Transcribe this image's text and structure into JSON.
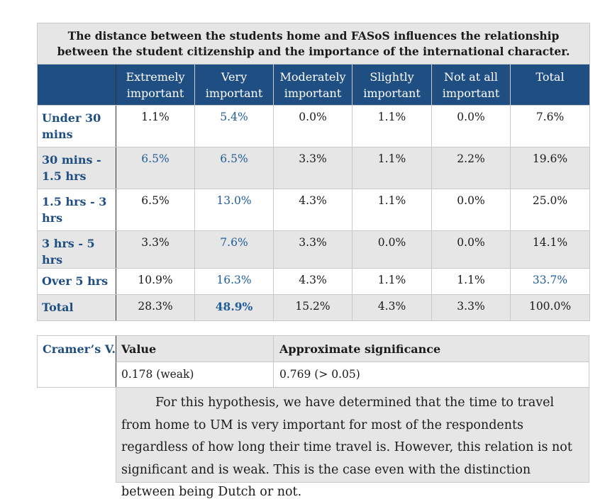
{
  "table": {
    "title": "The distance between the students home and FASoS influences the relationship between the student citizenship and the importance of the international character.",
    "headers": [
      "",
      "Extremely important",
      "Very important",
      "Moderately important",
      "Slightly important",
      "Not at all important",
      "Total"
    ],
    "rows": [
      {
        "label": "Under 30 mins",
        "values": [
          "1.1%",
          "5.4%",
          "0.0%",
          "1.1%",
          "0.0%",
          "7.6%"
        ]
      },
      {
        "label": "30 mins - 1.5 hrs",
        "values": [
          "6.5%",
          "6.5%",
          "3.3%",
          "1.1%",
          "2.2%",
          "19.6%"
        ]
      },
      {
        "label": "1.5 hrs - 3 hrs",
        "values": [
          "6.5%",
          "13.0%",
          "4.3%",
          "1.1%",
          "0.0%",
          "25.0%"
        ]
      },
      {
        "label": "3 hrs - 5 hrs",
        "values": [
          "3.3%",
          "7.6%",
          "3.3%",
          "0.0%",
          "0.0%",
          "14.1%"
        ]
      },
      {
        "label": "Over 5 hrs",
        "values": [
          "10.9%",
          "16.3%",
          "4.3%",
          "1.1%",
          "1.1%",
          "33.7%"
        ]
      },
      {
        "label": "Total",
        "values": [
          "28.3%",
          "48.9%",
          "15.2%",
          "4.3%",
          "3.3%",
          "100.0%"
        ]
      }
    ]
  },
  "cramers": {
    "label": "Cramer’s V.",
    "value_header": "Value",
    "sig_header": "Approximate significance",
    "value": "0.178 (weak)",
    "significance": "0.769 (> 0.05)"
  },
  "conclusion": "For this hypothesis, we have determined that the time to travel from home to UM is very important for most of the respondents regardless of how long their time travel is. However, this relation is not significant and is weak. This is the case even with the distinction between being Dutch or not.",
  "colors": {
    "header_bg": "#1f4e82",
    "accent_text": "#1f5c9a",
    "shade": "#e6e6e6"
  }
}
